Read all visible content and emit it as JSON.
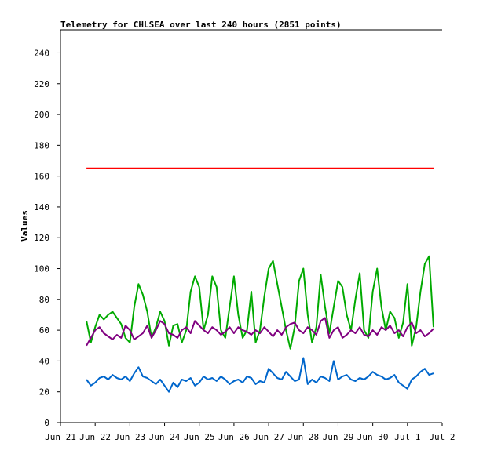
{
  "chart_data": {
    "type": "line",
    "title": "Telemetry for CHLSEA over last 240 hours (2851 points)",
    "xlabel": "",
    "ylabel": "Values",
    "ylim": [
      0,
      255
    ],
    "xlim": [
      "2021-06-21",
      "2021-07-02"
    ],
    "y_ticks": [
      0,
      20,
      40,
      60,
      80,
      100,
      120,
      140,
      160,
      180,
      200,
      220,
      240
    ],
    "x_ticks": [
      {
        "date": "2021-06-21",
        "label": "Jun 21"
      },
      {
        "date": "2021-06-22",
        "label": "Jun 22"
      },
      {
        "date": "2021-06-23",
        "label": "Jun 23"
      },
      {
        "date": "2021-06-24",
        "label": "Jun 24"
      },
      {
        "date": "2021-06-25",
        "label": "Jun 25"
      },
      {
        "date": "2021-06-26",
        "label": "Jun 26"
      },
      {
        "date": "2021-06-27",
        "label": "Jun 27"
      },
      {
        "date": "2021-06-28",
        "label": "Jun 28"
      },
      {
        "date": "2021-06-29",
        "label": "Jun 29"
      },
      {
        "date": "2021-06-30",
        "label": "Jun 30"
      },
      {
        "date": "2021-07-01",
        "label": "Jul 1"
      },
      {
        "date": "2021-07-02",
        "label": "Jul 2"
      }
    ],
    "grid": false,
    "legend": "none",
    "series": [
      {
        "color": "#ff0000",
        "x": [
          "2021-06-21 18:00",
          "2021-07-01 18:00"
        ],
        "y": [
          165,
          165
        ]
      },
      {
        "color": "#00aa00",
        "x": [
          "2021-06-21 18:00",
          "2021-06-21 21:00",
          "2021-06-22 00:00",
          "2021-06-22 03:00",
          "2021-06-22 06:00",
          "2021-06-22 09:00",
          "2021-06-22 12:00",
          "2021-06-22 15:00",
          "2021-06-22 18:00",
          "2021-06-22 21:00",
          "2021-06-23 00:00",
          "2021-06-23 03:00",
          "2021-06-23 06:00",
          "2021-06-23 09:00",
          "2021-06-23 12:00",
          "2021-06-23 15:00",
          "2021-06-23 18:00",
          "2021-06-23 21:00",
          "2021-06-24 00:00",
          "2021-06-24 03:00",
          "2021-06-24 06:00",
          "2021-06-24 09:00",
          "2021-06-24 12:00",
          "2021-06-24 15:00",
          "2021-06-24 18:00",
          "2021-06-24 21:00",
          "2021-06-25 00:00",
          "2021-06-25 03:00",
          "2021-06-25 06:00",
          "2021-06-25 09:00",
          "2021-06-25 12:00",
          "2021-06-25 15:00",
          "2021-06-25 18:00",
          "2021-06-25 21:00",
          "2021-06-26 00:00",
          "2021-06-26 03:00",
          "2021-06-26 06:00",
          "2021-06-26 09:00",
          "2021-06-26 12:00",
          "2021-06-26 15:00",
          "2021-06-26 18:00",
          "2021-06-26 21:00",
          "2021-06-27 00:00",
          "2021-06-27 03:00",
          "2021-06-27 06:00",
          "2021-06-27 09:00",
          "2021-06-27 12:00",
          "2021-06-27 15:00",
          "2021-06-27 18:00",
          "2021-06-27 21:00",
          "2021-06-28 00:00",
          "2021-06-28 03:00",
          "2021-06-28 06:00",
          "2021-06-28 09:00",
          "2021-06-28 12:00",
          "2021-06-28 15:00",
          "2021-06-28 18:00",
          "2021-06-28 21:00",
          "2021-06-29 00:00",
          "2021-06-29 03:00",
          "2021-06-29 06:00",
          "2021-06-29 09:00",
          "2021-06-29 12:00",
          "2021-06-29 15:00",
          "2021-06-29 18:00",
          "2021-06-29 21:00",
          "2021-06-30 00:00",
          "2021-06-30 03:00",
          "2021-06-30 06:00",
          "2021-06-30 09:00",
          "2021-06-30 12:00",
          "2021-06-30 15:00",
          "2021-06-30 18:00",
          "2021-06-30 21:00",
          "2021-07-01 00:00",
          "2021-07-01 03:00",
          "2021-07-01 06:00",
          "2021-07-01 09:00",
          "2021-07-01 12:00",
          "2021-07-01 15:00",
          "2021-07-01 18:00"
        ],
        "y": [
          66,
          52,
          62,
          70,
          67,
          70,
          72,
          68,
          64,
          55,
          52,
          75,
          90,
          83,
          72,
          55,
          62,
          72,
          66,
          50,
          63,
          64,
          52,
          60,
          85,
          95,
          88,
          60,
          70,
          95,
          88,
          60,
          55,
          75,
          95,
          70,
          55,
          60,
          85,
          52,
          60,
          82,
          100,
          105,
          90,
          75,
          60,
          48,
          62,
          92,
          100,
          70,
          52,
          62,
          96,
          75,
          58,
          75,
          92,
          88,
          70,
          60,
          80,
          97,
          60,
          55,
          85,
          100,
          75,
          60,
          72,
          68,
          55,
          65,
          90,
          50,
          62,
          85,
          103,
          108,
          62
        ]
      },
      {
        "color": "#800080",
        "x": [
          "2021-06-21 18:00",
          "2021-06-21 21:00",
          "2021-06-22 00:00",
          "2021-06-22 03:00",
          "2021-06-22 06:00",
          "2021-06-22 09:00",
          "2021-06-22 12:00",
          "2021-06-22 15:00",
          "2021-06-22 18:00",
          "2021-06-22 21:00",
          "2021-06-23 00:00",
          "2021-06-23 03:00",
          "2021-06-23 06:00",
          "2021-06-23 09:00",
          "2021-06-23 12:00",
          "2021-06-23 15:00",
          "2021-06-23 18:00",
          "2021-06-23 21:00",
          "2021-06-24 00:00",
          "2021-06-24 03:00",
          "2021-06-24 06:00",
          "2021-06-24 09:00",
          "2021-06-24 12:00",
          "2021-06-24 15:00",
          "2021-06-24 18:00",
          "2021-06-24 21:00",
          "2021-06-25 00:00",
          "2021-06-25 03:00",
          "2021-06-25 06:00",
          "2021-06-25 09:00",
          "2021-06-25 12:00",
          "2021-06-25 15:00",
          "2021-06-25 18:00",
          "2021-06-25 21:00",
          "2021-06-26 00:00",
          "2021-06-26 03:00",
          "2021-06-26 06:00",
          "2021-06-26 09:00",
          "2021-06-26 12:00",
          "2021-06-26 15:00",
          "2021-06-26 18:00",
          "2021-06-26 21:00",
          "2021-06-27 00:00",
          "2021-06-27 03:00",
          "2021-06-27 06:00",
          "2021-06-27 09:00",
          "2021-06-27 12:00",
          "2021-06-27 15:00",
          "2021-06-27 18:00",
          "2021-06-27 21:00",
          "2021-06-28 00:00",
          "2021-06-28 03:00",
          "2021-06-28 06:00",
          "2021-06-28 09:00",
          "2021-06-28 12:00",
          "2021-06-28 15:00",
          "2021-06-28 18:00",
          "2021-06-28 21:00",
          "2021-06-29 00:00",
          "2021-06-29 03:00",
          "2021-06-29 06:00",
          "2021-06-29 09:00",
          "2021-06-29 12:00",
          "2021-06-29 15:00",
          "2021-06-29 18:00",
          "2021-06-29 21:00",
          "2021-06-30 00:00",
          "2021-06-30 03:00",
          "2021-06-30 06:00",
          "2021-06-30 09:00",
          "2021-06-30 12:00",
          "2021-06-30 15:00",
          "2021-06-30 18:00",
          "2021-06-30 21:00",
          "2021-07-01 00:00",
          "2021-07-01 03:00",
          "2021-07-01 06:00",
          "2021-07-01 09:00",
          "2021-07-01 12:00",
          "2021-07-01 15:00",
          "2021-07-01 18:00"
        ],
        "y": [
          50,
          55,
          60,
          62,
          58,
          56,
          54,
          57,
          55,
          63,
          60,
          54,
          56,
          58,
          63,
          55,
          60,
          66,
          64,
          58,
          57,
          55,
          60,
          62,
          58,
          66,
          63,
          60,
          58,
          62,
          60,
          57,
          59,
          62,
          58,
          62,
          60,
          59,
          57,
          60,
          58,
          62,
          59,
          56,
          60,
          57,
          62,
          64,
          65,
          60,
          58,
          62,
          60,
          57,
          66,
          68,
          55,
          60,
          62,
          55,
          57,
          60,
          58,
          62,
          57,
          56,
          60,
          57,
          62,
          60,
          63,
          58,
          60,
          56,
          62,
          65,
          58,
          60,
          56,
          58,
          61
        ]
      },
      {
        "color": "#0066cc",
        "x": [
          "2021-06-21 18:00",
          "2021-06-21 21:00",
          "2021-06-22 00:00",
          "2021-06-22 03:00",
          "2021-06-22 06:00",
          "2021-06-22 09:00",
          "2021-06-22 12:00",
          "2021-06-22 15:00",
          "2021-06-22 18:00",
          "2021-06-22 21:00",
          "2021-06-23 00:00",
          "2021-06-23 03:00",
          "2021-06-23 06:00",
          "2021-06-23 09:00",
          "2021-06-23 12:00",
          "2021-06-23 15:00",
          "2021-06-23 18:00",
          "2021-06-23 21:00",
          "2021-06-24 00:00",
          "2021-06-24 03:00",
          "2021-06-24 06:00",
          "2021-06-24 09:00",
          "2021-06-24 12:00",
          "2021-06-24 15:00",
          "2021-06-24 18:00",
          "2021-06-24 21:00",
          "2021-06-25 00:00",
          "2021-06-25 03:00",
          "2021-06-25 06:00",
          "2021-06-25 09:00",
          "2021-06-25 12:00",
          "2021-06-25 15:00",
          "2021-06-25 18:00",
          "2021-06-25 21:00",
          "2021-06-26 00:00",
          "2021-06-26 03:00",
          "2021-06-26 06:00",
          "2021-06-26 09:00",
          "2021-06-26 12:00",
          "2021-06-26 15:00",
          "2021-06-26 18:00",
          "2021-06-26 21:00",
          "2021-06-27 00:00",
          "2021-06-27 03:00",
          "2021-06-27 06:00",
          "2021-06-27 09:00",
          "2021-06-27 12:00",
          "2021-06-27 15:00",
          "2021-06-27 18:00",
          "2021-06-27 21:00",
          "2021-06-28 00:00",
          "2021-06-28 03:00",
          "2021-06-28 06:00",
          "2021-06-28 09:00",
          "2021-06-28 12:00",
          "2021-06-28 15:00",
          "2021-06-28 18:00",
          "2021-06-28 21:00",
          "2021-06-29 00:00",
          "2021-06-29 03:00",
          "2021-06-29 06:00",
          "2021-06-29 09:00",
          "2021-06-29 12:00",
          "2021-06-29 15:00",
          "2021-06-29 18:00",
          "2021-06-29 21:00",
          "2021-06-30 00:00",
          "2021-06-30 03:00",
          "2021-06-30 06:00",
          "2021-06-30 09:00",
          "2021-06-30 12:00",
          "2021-06-30 15:00",
          "2021-06-30 18:00",
          "2021-06-30 21:00",
          "2021-07-01 00:00",
          "2021-07-01 03:00",
          "2021-07-01 06:00",
          "2021-07-01 09:00",
          "2021-07-01 12:00",
          "2021-07-01 15:00",
          "2021-07-01 18:00"
        ],
        "y": [
          28,
          24,
          26,
          29,
          30,
          28,
          31,
          29,
          28,
          30,
          27,
          32,
          36,
          30,
          29,
          27,
          25,
          28,
          24,
          20,
          26,
          23,
          28,
          27,
          29,
          24,
          26,
          30,
          28,
          29,
          27,
          30,
          28,
          25,
          27,
          28,
          26,
          30,
          29,
          25,
          27,
          26,
          35,
          32,
          29,
          28,
          33,
          30,
          27,
          28,
          42,
          25,
          28,
          26,
          30,
          29,
          27,
          40,
          28,
          30,
          31,
          28,
          27,
          29,
          28,
          30,
          33,
          31,
          30,
          28,
          29,
          31,
          26,
          24,
          22,
          28,
          30,
          33,
          35,
          31,
          32
        ]
      }
    ]
  }
}
